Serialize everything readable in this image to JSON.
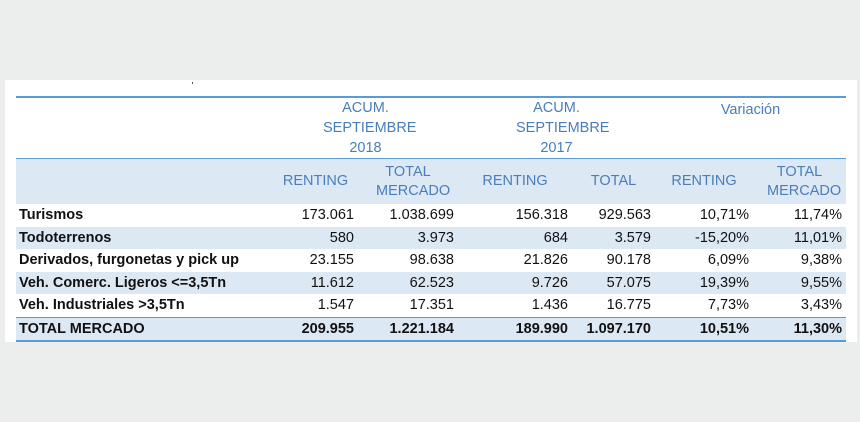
{
  "table": {
    "periods": [
      "ACUM. SEPTIEMBRE 2018",
      "ACUM. SEPTIEMBRE 2017",
      "Variación"
    ],
    "columns": [
      "RENTING",
      "TOTAL MERCADO",
      "RENTING",
      "TOTAL",
      "RENTING",
      "TOTAL MERCADO"
    ],
    "rows": [
      {
        "label": "Turismos",
        "values": [
          "173.061",
          "1.038.699",
          "156.318",
          "929.563",
          "10,71%",
          "11,74%"
        ]
      },
      {
        "label": "Todoterrenos",
        "values": [
          "580",
          "3.973",
          "684",
          "3.579",
          "-15,20%",
          "11,01%"
        ]
      },
      {
        "label": "Derivados, furgonetas y pick up",
        "values": [
          "23.155",
          "98.638",
          "21.826",
          "90.178",
          "6,09%",
          "9,38%"
        ]
      },
      {
        "label": "Veh. Comerc. Ligeros <=3,5Tn",
        "values": [
          "11.612",
          "62.523",
          "9.726",
          "57.075",
          "19,39%",
          "9,55%"
        ]
      },
      {
        "label": "Veh. Industriales >3,5Tn",
        "values": [
          "1.547",
          "17.351",
          "1.436",
          "16.775",
          "7,73%",
          "3,43%"
        ]
      }
    ],
    "total": {
      "label": "TOTAL MERCADO",
      "values": [
        "209.955",
        "1.221.184",
        "189.990",
        "1.097.170",
        "10,51%",
        "11,30%"
      ]
    }
  },
  "colors": {
    "accent": "#5b9bd5",
    "header_text": "#4a7dbb",
    "band": "#dde8f5",
    "background": "#eceded"
  }
}
